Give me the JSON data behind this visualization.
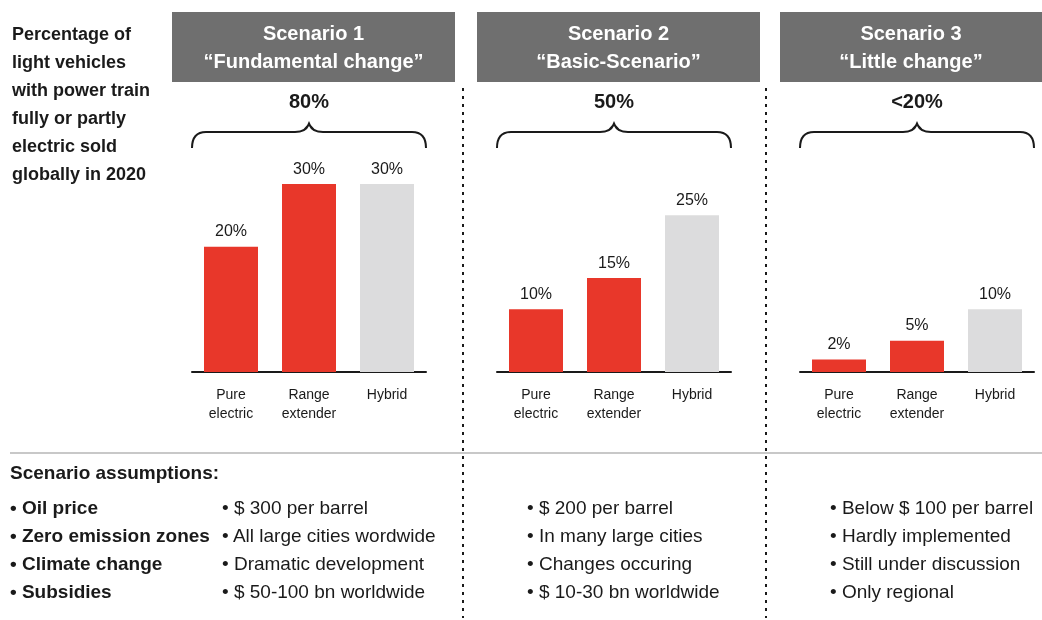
{
  "chart_data": [
    {
      "type": "bar",
      "title": "Scenario 1",
      "subtitle": "“Fundamental change”",
      "ylabel": "Percentage of light vehicles with power train fully or partly electric sold globally in 2020",
      "categories": [
        "Pure electric",
        "Range extender",
        "Hybrid"
      ],
      "values": [
        20,
        30,
        30
      ],
      "colors": [
        "#e8372a",
        "#e8372a",
        "#dcdcdd"
      ],
      "value_labels": [
        "20%",
        "30%",
        "30%"
      ],
      "annotations": [
        "80%",
        "• $ 300 per barrel",
        "• All large cities wordwide",
        "• Dramatic development",
        "• $ 50-100 bn worldwide"
      ]
    },
    {
      "type": "bar",
      "title": "Scenario 2",
      "subtitle": "“Basic-Scenario”",
      "categories": [
        "Pure electric",
        "Range extender",
        "Hybrid"
      ],
      "values": [
        10,
        15,
        25
      ],
      "colors": [
        "#e8372a",
        "#e8372a",
        "#dcdcdd"
      ],
      "value_labels": [
        "10%",
        "15%",
        "25%"
      ],
      "annotations": [
        "50%",
        "• $ 200 per barrel",
        "• In many large cities",
        "• Changes occuring",
        "• $ 10-30 bn worldwide"
      ]
    },
    {
      "type": "bar",
      "title": "Scenario 3",
      "subtitle": "“Little change”",
      "categories": [
        "Pure electric",
        "Range extender",
        "Hybrid"
      ],
      "values": [
        2,
        5,
        10
      ],
      "colors": [
        "#e8372a",
        "#e8372a",
        "#dcdcdd"
      ],
      "value_labels": [
        "2%",
        "5%",
        "10%"
      ],
      "annotations": [
        "<20%",
        "• Below $ 100 per barrel",
        "• Hardly implemented",
        "• Still under discussion",
        "• Only regional"
      ]
    },
    {
      "type": "other",
      "title": "Scenario assumptions:",
      "annotations": [
        "• Oil price",
        "• Zero emission zones",
        "• Climate change",
        "• Subsidies"
      ]
    }
  ]
}
